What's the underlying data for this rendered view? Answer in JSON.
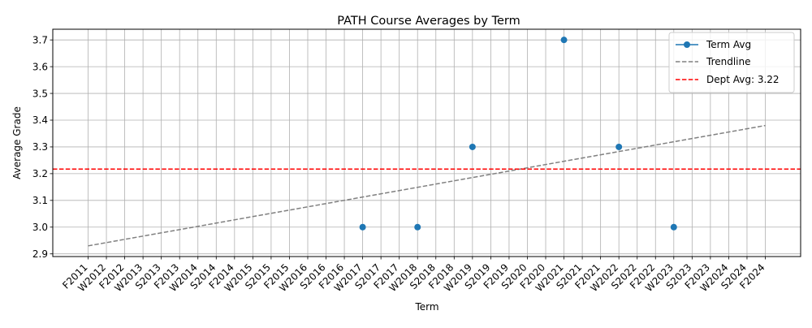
{
  "chart_data": {
    "type": "scatter",
    "title": "PATH Course Averages by Term",
    "xlabel": "Term",
    "ylabel": "Average Grade",
    "categories": [
      "F2011",
      "W2012",
      "F2012",
      "W2013",
      "S2013",
      "F2013",
      "W2014",
      "S2014",
      "F2014",
      "W2015",
      "S2015",
      "F2015",
      "W2016",
      "S2016",
      "F2016",
      "W2017",
      "S2017",
      "F2017",
      "W2018",
      "S2018",
      "F2018",
      "W2019",
      "S2019",
      "F2019",
      "S2020",
      "F2020",
      "W2021",
      "S2021",
      "F2021",
      "W2022",
      "S2022",
      "F2022",
      "W2023",
      "S2023",
      "F2023",
      "W2024",
      "S2024",
      "F2024"
    ],
    "ylim": [
      2.89,
      3.74
    ],
    "yticks": [
      2.9,
      3.0,
      3.1,
      3.2,
      3.3,
      3.4,
      3.5,
      3.6,
      3.7
    ],
    "ytick_labels": [
      "2.9",
      "3.0",
      "3.1",
      "3.2",
      "3.3",
      "3.4",
      "3.5",
      "3.6",
      "3.7"
    ],
    "grid": true,
    "legend_position": "top-right",
    "series": [
      {
        "name": "Term Avg",
        "kind": "points",
        "color": "#1f77b4",
        "points": [
          {
            "x": "W2017",
            "y": 3.0
          },
          {
            "x": "W2018",
            "y": 3.0
          },
          {
            "x": "W2019",
            "y": 3.3
          },
          {
            "x": "W2021",
            "y": 3.7
          },
          {
            "x": "W2022",
            "y": 3.3
          },
          {
            "x": "W2023",
            "y": 3.0
          }
        ]
      },
      {
        "name": "Trendline",
        "kind": "trend",
        "color": "#808080",
        "from": {
          "x": "F2011",
          "y": 2.93
        },
        "to": {
          "x": "F2024",
          "y": 3.38
        }
      },
      {
        "name": "Dept Avg: 3.22",
        "kind": "hline",
        "color": "#ff0000",
        "y": 3.217
      }
    ]
  }
}
